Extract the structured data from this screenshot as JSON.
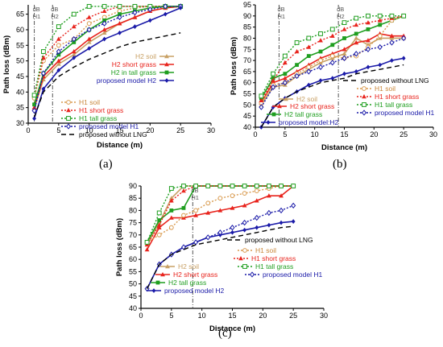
{
  "panel_labels": [
    "(a)",
    "(b)",
    "(c)"
  ],
  "chart_data": [
    {
      "panel": "(a)",
      "type": "line",
      "xlabel": "Distance (m)",
      "ylabel": "Path loss (dBm)",
      "xlim": [
        0,
        30
      ],
      "ylim": [
        30,
        68
      ],
      "xticks": [
        0,
        5,
        10,
        15,
        20,
        25,
        30
      ],
      "yticks": [
        30,
        35,
        40,
        45,
        50,
        55,
        60,
        65
      ],
      "grid": false,
      "legend_position": "bottom-right",
      "vlines": [
        {
          "x": 1,
          "label": "dB H1",
          "label_lines": [
            "dB",
            "H1"
          ]
        },
        {
          "x": 4,
          "label": "dB H2",
          "label_lines": [
            "dB",
            "H2"
          ]
        }
      ],
      "series": [
        {
          "name": "H2 soil",
          "color": "#c8a064",
          "dash": "",
          "marker": "triangle",
          "x": [
            1,
            2.5,
            5,
            7.5,
            10,
            12.5,
            15,
            17.5,
            20,
            22.5,
            25
          ],
          "y": [
            35,
            44,
            49,
            52,
            56,
            59,
            62,
            64,
            66,
            67,
            67.5
          ]
        },
        {
          "name": "H1 soil",
          "color": "#d99a4e",
          "dash": "2,2",
          "marker": "circle-open",
          "x": [
            1,
            2.5,
            5,
            7.5,
            10,
            12.5,
            15,
            17.5,
            20,
            22.5,
            25
          ],
          "y": [
            38,
            50,
            55,
            57,
            62,
            64,
            66,
            67,
            67.5,
            67.5,
            67.5
          ]
        },
        {
          "name": "H2 short grass",
          "color": "#e8231c",
          "dash": "",
          "marker": "triangle",
          "x": [
            1,
            2.5,
            5,
            7.5,
            10,
            12.5,
            15,
            17.5,
            20,
            22.5,
            25
          ],
          "y": [
            35,
            45,
            50,
            53,
            57,
            60,
            62,
            64,
            66,
            67,
            67.5
          ]
        },
        {
          "name": "H1 short grass",
          "color": "#e8231c",
          "dash": "2,2",
          "marker": "triangle",
          "x": [
            1,
            2.5,
            5,
            7.5,
            10,
            12.5,
            15,
            17.5,
            20,
            22.5,
            25
          ],
          "y": [
            39,
            51,
            57,
            61,
            64,
            66,
            67.5,
            67.5,
            67.5,
            67.5,
            67.5
          ]
        },
        {
          "name": "H2 in tall grass",
          "color": "#1f9e1f",
          "dash": "",
          "marker": "square",
          "x": [
            1,
            2.5,
            5,
            7.5,
            10,
            12.5,
            15,
            17.5,
            20,
            22.5,
            25
          ],
          "y": [
            36,
            46,
            52,
            56,
            60,
            63,
            65,
            66,
            67,
            67.5,
            67.5
          ]
        },
        {
          "name": "H1 tall grass",
          "color": "#1f9e1f",
          "dash": "2,2",
          "marker": "square-open",
          "x": [
            1,
            2.5,
            5,
            7.5,
            10,
            12.5,
            15,
            17.5,
            20,
            22.5,
            25
          ],
          "y": [
            39,
            53,
            61,
            65,
            67.5,
            67.5,
            67.5,
            67.5,
            67.5,
            67.5,
            67.5
          ]
        },
        {
          "name": "proposed model H1",
          "color": "#1a1aa8",
          "dash": "2,2",
          "marker": "diamond-open",
          "x": [
            1,
            2.5,
            5,
            7.5,
            10,
            12.5,
            15,
            17.5,
            20,
            22.5,
            25
          ],
          "y": [
            34,
            46,
            53,
            57,
            60,
            62,
            64,
            65.5,
            66.5,
            67.5,
            67.5
          ]
        },
        {
          "name": "proposed model H2",
          "color": "#1a1aa8",
          "dash": "",
          "marker": "diamond",
          "x": [
            1,
            2.5,
            5,
            7.5,
            10,
            12.5,
            15,
            17.5,
            20,
            22.5,
            25
          ],
          "y": [
            31.5,
            41,
            47,
            51,
            54,
            57,
            59,
            61,
            63,
            65,
            67
          ]
        },
        {
          "name": "proposed without LNG",
          "color": "#000000",
          "dash": "6,4",
          "marker": "none",
          "x": [
            1,
            2.5,
            5,
            7.5,
            10,
            12.5,
            15,
            17.5,
            20,
            22.5,
            25
          ],
          "y": [
            32,
            40,
            45,
            48,
            50.5,
            52.5,
            54.5,
            56,
            57,
            58,
            59
          ]
        }
      ],
      "legend_order": [
        "H2 soil",
        "H2 short grass",
        "H2 in tall grass",
        "proposed model H2",
        "H1 soil",
        "H1 short grass",
        "H1 tall grass",
        "proposed model H1",
        "proposed without LNG"
      ]
    },
    {
      "panel": "(b)",
      "type": "line",
      "xlabel": "Distance (m)",
      "ylabel": "Path loss (dBm)",
      "xlim": [
        0,
        30
      ],
      "ylim": [
        40,
        95
      ],
      "xticks": [
        0,
        5,
        10,
        15,
        20,
        25,
        30
      ],
      "yticks": [
        40,
        45,
        50,
        55,
        60,
        65,
        70,
        75,
        80,
        85,
        90,
        95
      ],
      "grid": false,
      "legend_position": "bottom",
      "vlines": [
        {
          "x": 4,
          "label": "dB H1",
          "label_lines": [
            "dB",
            "H1"
          ]
        },
        {
          "x": 14,
          "label": "dB H2",
          "label_lines": [
            "dB",
            "H2"
          ]
        }
      ],
      "series": [
        {
          "name": "H2 soil",
          "color": "#c8a064",
          "dash": "",
          "marker": "triangle",
          "x": [
            1,
            3,
            5,
            7,
            9,
            11,
            13,
            15,
            17,
            19,
            21,
            23,
            25
          ],
          "y": [
            50,
            58,
            59,
            63,
            66,
            69,
            71,
            73,
            80,
            77,
            80,
            80,
            80
          ]
        },
        {
          "name": "H2 short grass",
          "color": "#e8231c",
          "dash": "",
          "marker": "triangle",
          "x": [
            1,
            3,
            5,
            7,
            9,
            11,
            13,
            15,
            17,
            19,
            21,
            23,
            25
          ],
          "y": [
            51,
            60,
            62,
            65,
            68,
            71,
            73,
            75,
            78,
            79,
            82,
            81,
            81
          ]
        },
        {
          "name": "H2 tall grass",
          "color": "#1f9e1f",
          "dash": "",
          "marker": "square",
          "x": [
            1,
            3,
            5,
            7,
            9,
            11,
            13,
            15,
            17,
            19,
            21,
            23,
            25
          ],
          "y": [
            53,
            62,
            64,
            68,
            72,
            74,
            77,
            80,
            82,
            84,
            86,
            88,
            90
          ]
        },
        {
          "name": "proposed model H2",
          "color": "#1a1aa8",
          "dash": "",
          "marker": "diamond",
          "x": [
            1,
            3,
            5,
            7,
            9,
            11,
            13,
            15,
            17,
            19,
            21,
            23,
            25
          ],
          "y": [
            40,
            49,
            53,
            56,
            59,
            61,
            62,
            64,
            65,
            67,
            68,
            70,
            71
          ]
        },
        {
          "name": "H1 soil",
          "color": "#d99a4e",
          "dash": "2,2",
          "marker": "circle-open",
          "x": [
            1,
            3,
            5,
            7,
            9,
            11,
            13,
            15,
            17,
            19,
            21,
            23,
            25
          ],
          "y": [
            51,
            59,
            60,
            64,
            67,
            70,
            72,
            71,
            72,
            76,
            81,
            88,
            90
          ]
        },
        {
          "name": "H1 short grass",
          "color": "#e8231c",
          "dash": "2,2",
          "marker": "triangle",
          "x": [
            1,
            3,
            5,
            7,
            9,
            11,
            13,
            15,
            17,
            19,
            21,
            23,
            25
          ],
          "y": [
            52,
            61,
            69,
            74,
            76,
            79,
            81,
            84,
            86,
            87,
            88,
            89,
            90
          ]
        },
        {
          "name": "H1 tall grass",
          "color": "#1f9e1f",
          "dash": "2,2",
          "marker": "square-open",
          "x": [
            1,
            3,
            5,
            7,
            9,
            11,
            13,
            15,
            17,
            19,
            21,
            23,
            25
          ],
          "y": [
            54,
            64,
            72,
            78,
            80,
            82,
            84,
            87,
            89,
            90,
            90,
            90,
            90
          ]
        },
        {
          "name": "proposed model H1",
          "color": "#1a1aa8",
          "dash": "2,2",
          "marker": "diamond-open",
          "x": [
            1,
            3,
            5,
            7,
            9,
            11,
            13,
            15,
            17,
            19,
            21,
            23,
            25
          ],
          "y": [
            49,
            58,
            60,
            63,
            65,
            67,
            69,
            71,
            73,
            75,
            76,
            78,
            80
          ]
        },
        {
          "name": "proposed without LNG",
          "color": "#000000",
          "dash": "6,4",
          "marker": "none",
          "x": [
            1,
            3,
            5,
            7,
            9,
            11,
            13,
            15,
            17,
            19,
            21,
            23,
            25
          ],
          "y": [
            40,
            49,
            53,
            56,
            58,
            60,
            61,
            62,
            64,
            65,
            66,
            67,
            68
          ]
        }
      ],
      "legend_order": [
        "proposed without LNG",
        "H1 soil",
        "H2 soil",
        "H1 short grass",
        "H2 short grass",
        "H1 tall grass",
        "H2 tall grass",
        "proposed model H1",
        "proposed model:H2"
      ]
    },
    {
      "panel": "(c)",
      "type": "line",
      "xlabel": "Distance (m)",
      "ylabel": "Path loss (dBm)",
      "xlim": [
        0,
        30
      ],
      "ylim": [
        40,
        90
      ],
      "xticks": [
        0,
        5,
        10,
        15,
        20,
        25,
        30
      ],
      "yticks": [
        40,
        45,
        50,
        55,
        60,
        65,
        70,
        75,
        80,
        85,
        90
      ],
      "grid": false,
      "legend_position": "right",
      "vlines": [
        {
          "x": 8.5,
          "label": "dB H1",
          "label_lines": [
            "dB",
            "H1"
          ]
        }
      ],
      "series": [
        {
          "name": "H2 soil",
          "color": "#c8a064",
          "dash": "",
          "marker": "triangle",
          "x": [
            1,
            3,
            5,
            7,
            9,
            11,
            13,
            15,
            17,
            19,
            21,
            23,
            25
          ],
          "y": [
            66,
            75,
            85,
            90,
            90,
            90,
            90,
            90,
            90,
            90,
            90,
            90,
            90
          ]
        },
        {
          "name": "H2 short grass",
          "color": "#e8231c",
          "dash": "",
          "marker": "triangle",
          "x": [
            1,
            3,
            5,
            7,
            9,
            11,
            13,
            15,
            17,
            19,
            21,
            23,
            25
          ],
          "y": [
            64,
            73,
            77,
            77,
            78,
            79,
            80,
            81,
            82,
            84,
            86,
            86,
            90
          ]
        },
        {
          "name": "H2 tall grass",
          "color": "#1f9e1f",
          "dash": "",
          "marker": "square",
          "x": [
            1,
            3,
            5,
            7,
            9,
            11,
            13,
            15,
            17,
            19,
            21,
            23,
            25
          ],
          "y": [
            67,
            76,
            80,
            81,
            90,
            90,
            90,
            90,
            90,
            90,
            90,
            90,
            90
          ]
        },
        {
          "name": "proposed model H2",
          "color": "#1a1aa8",
          "dash": "",
          "marker": "diamond",
          "x": [
            1,
            3,
            5,
            7,
            9,
            11,
            13,
            15,
            17,
            19,
            21,
            23,
            25
          ],
          "y": [
            48,
            58,
            62,
            65,
            67,
            69,
            70,
            71,
            72,
            73,
            74,
            75,
            75.5
          ]
        },
        {
          "name": "H1 soil",
          "color": "#d99a4e",
          "dash": "2,2",
          "marker": "circle-open",
          "x": [
            1,
            3,
            5,
            7,
            9,
            11,
            13,
            15,
            17,
            19,
            21,
            23,
            25
          ],
          "y": [
            67,
            70,
            73,
            78,
            80,
            83,
            85,
            86,
            87,
            88,
            89,
            90,
            90
          ]
        },
        {
          "name": "H1 short grass",
          "color": "#e8231c",
          "dash": "2,2",
          "marker": "triangle",
          "x": [
            1,
            3,
            5,
            7,
            9,
            11,
            13,
            15,
            17,
            19,
            21,
            23,
            25
          ],
          "y": [
            66,
            74,
            84,
            88,
            90,
            90,
            90,
            90,
            90,
            90,
            90,
            90,
            90
          ]
        },
        {
          "name": "H1 tall grass",
          "color": "#1f9e1f",
          "dash": "2,2",
          "marker": "square-open",
          "x": [
            1,
            3,
            5,
            7,
            9,
            11,
            13,
            15,
            17,
            19,
            21,
            23,
            25
          ],
          "y": [
            67,
            79,
            89,
            90,
            90,
            90,
            90,
            90,
            90,
            90,
            90,
            90,
            90
          ]
        },
        {
          "name": "proposed model H1",
          "color": "#1a1aa8",
          "dash": "2,2",
          "marker": "diamond-open",
          "x": [
            1,
            3,
            5,
            7,
            9,
            11,
            13,
            15,
            17,
            19,
            21,
            23,
            25
          ],
          "y": [
            48,
            58,
            62,
            65,
            67,
            69,
            71,
            73,
            75,
            77,
            79,
            80,
            82
          ]
        },
        {
          "name": "proposed without LNG",
          "color": "#000000",
          "dash": "6,4",
          "marker": "none",
          "x": [
            1,
            3,
            5,
            7,
            9,
            11,
            13,
            15,
            17,
            19,
            21,
            23,
            25
          ],
          "y": [
            48,
            58,
            62,
            64,
            66,
            67,
            68,
            69,
            70,
            71,
            72,
            73,
            73.5
          ]
        }
      ],
      "legend_order": [
        "proposed without LNG",
        "H1 soil",
        "H1 short grass",
        "H1 tall grass",
        "proposed model H1",
        "H2 soil",
        "H2 short grass",
        "H2 tall grass",
        "proposed model H2"
      ]
    }
  ]
}
